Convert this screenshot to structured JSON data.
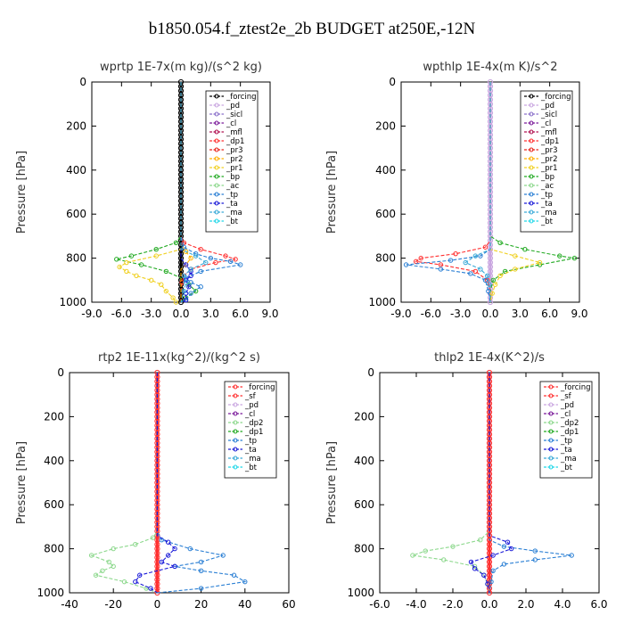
{
  "figure_title": "b1850.054.f_ztest2e_2b  BUDGET at250E,-12N",
  "colors": {
    "_forcing": "#000000",
    "_pd": "#c9a6e0",
    "_sicl": "#8a6fc9",
    "_cl": "#7b1a9a",
    "_mfl": "#b01050",
    "_dp1": "#ff3030",
    "_pr3": "#e8241a",
    "_pr2": "#ffb000",
    "_pr1": "#f0d020",
    "_bp": "#22aa22",
    "_ac": "#8cd88c",
    "_tp": "#2a7fd4",
    "_ta": "#1a1ad8",
    "_ma": "#3aaad8",
    "_bt": "#22d8e8",
    "_sf": "#ff3030",
    "_dp2": "#22aa22",
    "_forcing_red": "#ff3030"
  },
  "chart_data": [
    {
      "type": "line",
      "title": "wprtp   1E-7x(m kg)/(s^2 kg)",
      "ylabel": "Pressure [hPa]",
      "xlim": [
        -9,
        9
      ],
      "ylim": [
        1000,
        0
      ],
      "xticks": [
        "-9.0",
        "-6.0",
        "-3.0",
        "0.0",
        "3.0",
        "6.0",
        "9.0"
      ],
      "xtick_values": [
        -9,
        -6,
        -3,
        0,
        3,
        6,
        9
      ],
      "yticks": [
        "0",
        "200",
        "400",
        "600",
        "800",
        "1000"
      ],
      "ytick_values": [
        0,
        200,
        400,
        600,
        800,
        1000
      ],
      "legend": [
        "_forcing",
        "_pd",
        "_sicl",
        "_cl",
        "_mfl",
        "_dp1",
        "_pr3",
        "_pr2",
        "_pr1",
        "_bp",
        "_ac",
        "_tp",
        "_ta",
        "_ma",
        "_bt"
      ],
      "series": [
        {
          "name": "_forcing",
          "color_key": "_forcing",
          "p": [
            0,
            100,
            200,
            300,
            400,
            500,
            600,
            700,
            800,
            900,
            1000
          ],
          "v": [
            0,
            0,
            0,
            0,
            0,
            0,
            0,
            0,
            0,
            0,
            0
          ]
        },
        {
          "name": "_dp1",
          "color_key": "_dp1",
          "p": [
            0,
            700,
            730,
            760,
            790,
            805,
            820,
            850,
            880,
            910,
            950,
            1000
          ],
          "v": [
            0,
            0,
            0.3,
            2.0,
            4.5,
            5.5,
            3.5,
            1.0,
            0.3,
            0.1,
            0,
            0
          ]
        },
        {
          "name": "_bp",
          "color_key": "_bp",
          "p": [
            0,
            700,
            730,
            760,
            790,
            805,
            830,
            860,
            890,
            920,
            950,
            980,
            1000
          ],
          "v": [
            0,
            0,
            -0.5,
            -2.5,
            -5.0,
            -6.5,
            -4.0,
            -1.5,
            0,
            0.8,
            1.5,
            0.5,
            0
          ]
        },
        {
          "name": "_pr2",
          "color_key": "_pr2",
          "p": [
            0,
            740,
            770,
            800,
            830,
            850,
            880,
            910,
            940,
            970,
            1000
          ],
          "v": [
            0,
            0,
            0.5,
            1.0,
            0.5,
            0,
            0,
            0,
            0,
            0,
            0
          ]
        },
        {
          "name": "_pr1",
          "color_key": "_pr1",
          "p": [
            0,
            760,
            790,
            820,
            840,
            860,
            880,
            900,
            920,
            950,
            980,
            1000
          ],
          "v": [
            0,
            0,
            -2.5,
            -5.5,
            -6.2,
            -5.5,
            -4.5,
            -3.0,
            -2.0,
            -1.5,
            -0.8,
            -0.5
          ]
        },
        {
          "name": "_tp",
          "color_key": "_tp",
          "p": [
            0,
            700,
            750,
            780,
            800,
            815,
            830,
            860,
            890,
            910,
            930,
            960,
            990,
            1000
          ],
          "v": [
            0,
            0,
            0.3,
            1.5,
            3.0,
            5.0,
            6.0,
            2.0,
            0.5,
            1.0,
            2.0,
            1.0,
            0.5,
            0
          ]
        },
        {
          "name": "_ta",
          "color_key": "_ta",
          "p": [
            0,
            800,
            830,
            860,
            880,
            900,
            930,
            960,
            990,
            1000
          ],
          "v": [
            0,
            0,
            0.5,
            1.0,
            1.0,
            0.5,
            0.8,
            0.5,
            0.5,
            0
          ]
        },
        {
          "name": "_ma",
          "color_key": "_ma",
          "p": [
            0,
            760,
            790,
            820,
            850,
            880,
            910,
            950,
            1000
          ],
          "v": [
            0,
            0,
            1.5,
            2.5,
            1.0,
            0.3,
            0.5,
            0.3,
            0
          ]
        }
      ]
    },
    {
      "type": "line",
      "title": "wpthlp   1E-4x(m K)/s^2",
      "ylabel": "Pressure [hPa]",
      "xlim": [
        -9,
        9
      ],
      "ylim": [
        1000,
        0
      ],
      "xticks": [
        "-9.0",
        "-6.0",
        "-3.0",
        "0.0",
        "3.0",
        "6.0",
        "9.0"
      ],
      "xtick_values": [
        -9,
        -6,
        -3,
        0,
        3,
        6,
        9
      ],
      "yticks": [
        "0",
        "200",
        "400",
        "600",
        "800",
        "1000"
      ],
      "ytick_values": [
        0,
        200,
        400,
        600,
        800,
        1000
      ],
      "legend": [
        "_forcing",
        "_pd",
        "_sicl",
        "_cl",
        "_mfl",
        "_dp1",
        "_pr3",
        "_pr2",
        "_pr1",
        "_bp",
        "_ac",
        "_tp",
        "_ta",
        "_ma",
        "_bt"
      ],
      "series": [
        {
          "name": "_forcing",
          "color_key": "_pd",
          "p": [
            0,
            100,
            200,
            300,
            400,
            500,
            600,
            700,
            800,
            900,
            1000
          ],
          "v": [
            0,
            0,
            0,
            0,
            0,
            0,
            0,
            0,
            0,
            0,
            0
          ]
        },
        {
          "name": "_dp1",
          "color_key": "_dp1",
          "p": [
            0,
            720,
            750,
            780,
            800,
            815,
            830,
            860,
            900,
            950,
            1000
          ],
          "v": [
            0,
            0,
            -0.5,
            -3.5,
            -7.0,
            -7.5,
            -5.0,
            -1.5,
            -0.3,
            0,
            0
          ]
        },
        {
          "name": "_bp",
          "color_key": "_bp",
          "p": [
            0,
            700,
            730,
            760,
            790,
            800,
            830,
            860,
            900,
            950,
            1000
          ],
          "v": [
            0,
            0,
            1.0,
            3.5,
            7.0,
            8.5,
            5.0,
            1.5,
            0.3,
            0,
            0
          ]
        },
        {
          "name": "_pr1",
          "color_key": "_pr1",
          "p": [
            0,
            760,
            790,
            820,
            850,
            880,
            920,
            960,
            1000
          ],
          "v": [
            0,
            0,
            2.5,
            5.0,
            2.5,
            1.0,
            0.5,
            0.2,
            0
          ]
        },
        {
          "name": "_tp",
          "color_key": "_tp",
          "p": [
            0,
            760,
            790,
            810,
            830,
            850,
            870,
            900,
            950,
            1000
          ],
          "v": [
            0,
            0,
            -1.0,
            -4.0,
            -8.5,
            -5.0,
            -2.0,
            -0.5,
            -0.2,
            0
          ]
        },
        {
          "name": "_ma",
          "color_key": "_ma",
          "p": [
            0,
            760,
            790,
            820,
            850,
            880,
            920,
            1000
          ],
          "v": [
            0,
            0,
            -1.5,
            -2.5,
            -1.0,
            -0.3,
            -0.1,
            0
          ]
        }
      ]
    },
    {
      "type": "line",
      "title": "rtp2   1E-11x(kg^2)/(kg^2 s)",
      "ylabel": "Pressure [hPa]",
      "xlim": [
        -40,
        60
      ],
      "ylim": [
        1000,
        0
      ],
      "xticks": [
        "-40",
        "-20",
        "0",
        "20",
        "40",
        "60"
      ],
      "xtick_values": [
        -40,
        -20,
        0,
        20,
        40,
        60
      ],
      "yticks": [
        "0",
        "200",
        "400",
        "600",
        "800",
        "1000"
      ],
      "ytick_values": [
        0,
        200,
        400,
        600,
        800,
        1000
      ],
      "legend": [
        "_forcing",
        "_sf",
        "_pd",
        "_cl",
        "_dp2",
        "_dp1",
        "_tp",
        "_ta",
        "_ma",
        "_bt"
      ],
      "series": [
        {
          "name": "_forcing",
          "color_key": "_forcing_red",
          "p": [
            0,
            100,
            200,
            300,
            400,
            500,
            600,
            700,
            800,
            900,
            1000
          ],
          "v": [
            0,
            0,
            0,
            0,
            0,
            0,
            0,
            0,
            0,
            0,
            0
          ]
        },
        {
          "name": "_dp2",
          "color_key": "_ac",
          "p": [
            0,
            720,
            750,
            780,
            800,
            830,
            860,
            880,
            900,
            920,
            950,
            980,
            1000
          ],
          "v": [
            0,
            0,
            -2,
            -10,
            -20,
            -30,
            -22,
            -20,
            -25,
            -28,
            -15,
            -5,
            0
          ]
        },
        {
          "name": "_tp",
          "color_key": "_tp",
          "p": [
            0,
            720,
            760,
            800,
            830,
            860,
            880,
            900,
            920,
            950,
            980,
            1000
          ],
          "v": [
            0,
            0,
            2,
            15,
            30,
            20,
            8,
            20,
            35,
            40,
            20,
            0
          ]
        },
        {
          "name": "_ta",
          "color_key": "_ta",
          "p": [
            0,
            740,
            770,
            800,
            830,
            860,
            880,
            900,
            920,
            950,
            980,
            1000
          ],
          "v": [
            0,
            0,
            5,
            8,
            5,
            2,
            8,
            0,
            -8,
            -10,
            -3,
            0
          ]
        }
      ]
    },
    {
      "type": "line",
      "title": "thlp2   1E-4x(K^2)/s",
      "ylabel": "Pressure [hPa]",
      "xlim": [
        -6,
        6
      ],
      "ylim": [
        1000,
        0
      ],
      "xticks": [
        "-6.0",
        "-4.0",
        "-2.0",
        "0.0",
        "2.0",
        "4.0",
        "6.0"
      ],
      "xtick_values": [
        -6,
        -4,
        -2,
        0,
        2,
        4,
        6
      ],
      "yticks": [
        "0",
        "200",
        "400",
        "600",
        "800",
        "1000"
      ],
      "ytick_values": [
        0,
        200,
        400,
        600,
        800,
        1000
      ],
      "legend": [
        "_forcing",
        "_sf",
        "_pd",
        "_cl",
        "_dp2",
        "_dp1",
        "_tp",
        "_ta",
        "_ma",
        "_bt"
      ],
      "series": [
        {
          "name": "_forcing",
          "color_key": "_forcing_red",
          "p": [
            0,
            100,
            200,
            300,
            400,
            500,
            600,
            700,
            800,
            900,
            1000
          ],
          "v": [
            0,
            0,
            0,
            0,
            0,
            0,
            0,
            0,
            0,
            0,
            0
          ]
        },
        {
          "name": "_dp2",
          "color_key": "_ac",
          "p": [
            0,
            720,
            760,
            790,
            810,
            830,
            850,
            880,
            920,
            960,
            1000
          ],
          "v": [
            0,
            0,
            -0.5,
            -2.0,
            -3.5,
            -4.2,
            -2.5,
            -0.8,
            -0.3,
            -0.1,
            0
          ]
        },
        {
          "name": "_tp",
          "color_key": "_tp",
          "p": [
            0,
            760,
            790,
            810,
            830,
            850,
            870,
            900,
            950,
            1000
          ],
          "v": [
            0,
            0,
            0.8,
            2.5,
            4.5,
            2.5,
            0.8,
            0.2,
            0.1,
            0
          ]
        },
        {
          "name": "_ta",
          "color_key": "_ta",
          "p": [
            0,
            740,
            770,
            800,
            830,
            860,
            890,
            920,
            960,
            1000
          ],
          "v": [
            0,
            0,
            1.0,
            1.2,
            0.2,
            -1.0,
            -0.8,
            -0.3,
            -0.1,
            0
          ]
        }
      ]
    }
  ]
}
